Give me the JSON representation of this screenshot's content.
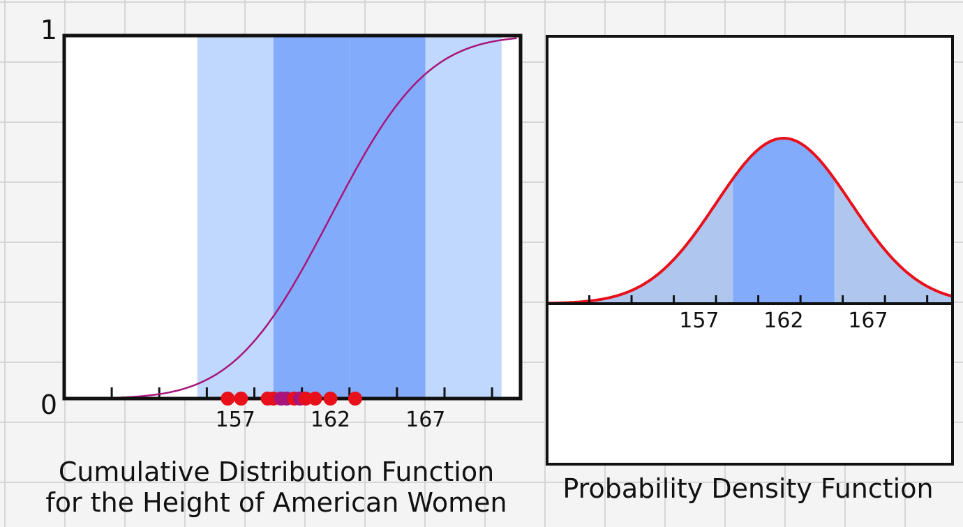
{
  "chart_data": [
    {
      "type": "line",
      "title": "Cumulative Distribution Function for the Height of American Women",
      "title_lines": [
        "Cumulative Distribution Function",
        "for the Height of American Women"
      ],
      "xlim": [
        148,
        172
      ],
      "ylim": [
        0,
        1
      ],
      "x_tick_labels": [
        "157",
        "162",
        "167"
      ],
      "x_tick_values": [
        157,
        162,
        167
      ],
      "y_tick_labels": [
        "0",
        "1"
      ],
      "y_tick_values": [
        0,
        1
      ],
      "mean": 162,
      "sd": 4,
      "shaded_bands": [
        {
          "from": 155,
          "to": 159,
          "color": "#c0d8fc"
        },
        {
          "from": 159,
          "to": 163,
          "color": "#82acfb"
        },
        {
          "from": 163,
          "to": 167,
          "color": "#82acfb"
        },
        {
          "from": 167,
          "to": 171,
          "color": "#c0d8fc"
        }
      ],
      "curve_color": "#a8147a",
      "samples": [
        156.6,
        157.3,
        158.7,
        159.0,
        159.4,
        159.7,
        160.1,
        160.4,
        160.7,
        161.2,
        162.0,
        163.3
      ],
      "sample_colors": [
        "#e8101a",
        "#e8101a",
        "#e8101a",
        "#e8101a",
        "#a8147a",
        "#a8147a",
        "#e8101a",
        "#a8147a",
        "#e8101a",
        "#e8101a",
        "#e8101a",
        "#e8101a"
      ],
      "grid": false
    },
    {
      "type": "area",
      "title": "Probability Density Function",
      "xlim": [
        148,
        172
      ],
      "x_tick_labels": [
        "157",
        "162",
        "167"
      ],
      "x_tick_values": [
        157,
        162,
        167
      ],
      "mean": 162,
      "sd": 4,
      "shaded_regions": [
        {
          "from": 148,
          "to": 159,
          "color": "#afc7ef"
        },
        {
          "from": 159,
          "to": 165,
          "color": "#82acfb"
        },
        {
          "from": 165,
          "to": 172,
          "color": "#afc7ef"
        }
      ],
      "curve_color": "#e8101a",
      "grid": false
    }
  ]
}
